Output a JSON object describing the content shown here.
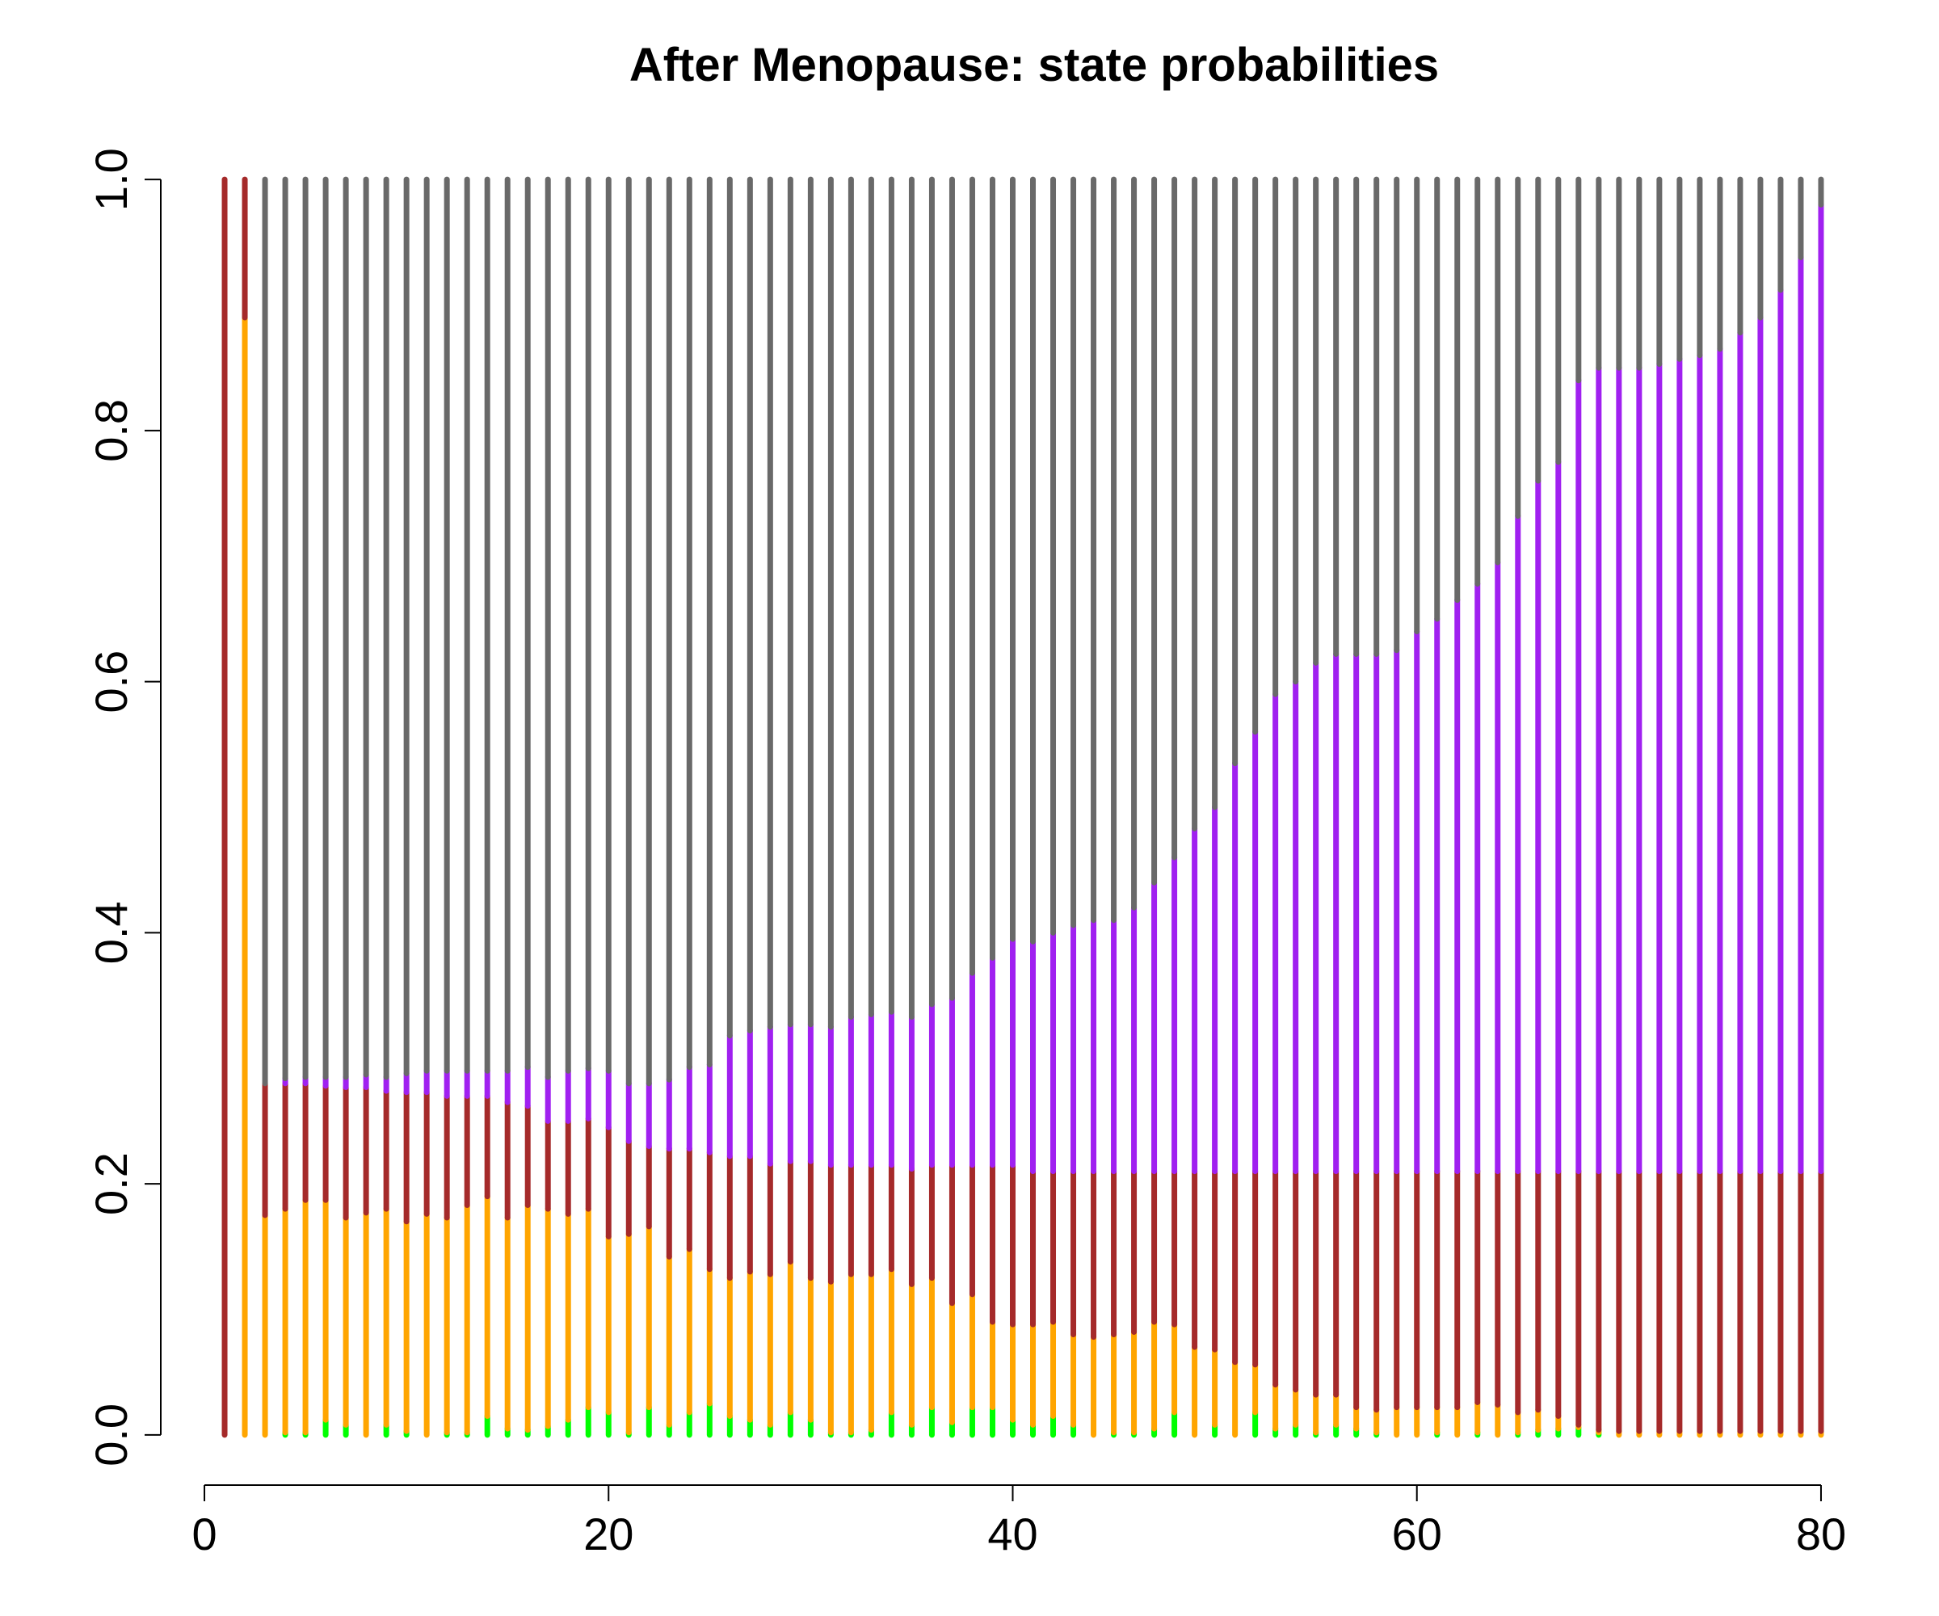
{
  "chart_data": {
    "type": "stacked-lines",
    "title": "After Menopause: state probabilities",
    "x": [
      1,
      2,
      3,
      4,
      5,
      6,
      7,
      8,
      9,
      10,
      11,
      12,
      13,
      14,
      15,
      16,
      17,
      18,
      19,
      20,
      21,
      22,
      23,
      24,
      25,
      26,
      27,
      28,
      29,
      30,
      31,
      32,
      33,
      34,
      35,
      36,
      37,
      38,
      39,
      40,
      41,
      42,
      43,
      44,
      45,
      46,
      47,
      48,
      49,
      50,
      51,
      52,
      53,
      54,
      55,
      56,
      57,
      58,
      59,
      60,
      61,
      62,
      63,
      64,
      65,
      66,
      67,
      68,
      69,
      70,
      71,
      72,
      73,
      74,
      75,
      76,
      77,
      78,
      79,
      80
    ],
    "series": [
      {
        "color": "#00ff00",
        "values": [
          0,
          0,
          0,
          0.002,
          0.002,
          0.012,
          0.008,
          0,
          0.008,
          0.003,
          0,
          0.002,
          0.002,
          0.015,
          0.005,
          0.004,
          0.007,
          0.012,
          0.022,
          0.018,
          0.002,
          0.022,
          0.008,
          0.018,
          0.025,
          0.015,
          0.012,
          0.008,
          0.018,
          0.012,
          0.002,
          0.002,
          0.004,
          0.018,
          0.008,
          0.022,
          0.01,
          0.022,
          0.022,
          0.012,
          0.008,
          0.015,
          0.008,
          0,
          0.002,
          0.002,
          0.005,
          0.018,
          0,
          0.008,
          0,
          0.018,
          0.005,
          0.008,
          0.002,
          0.008,
          0.005,
          0.002,
          0,
          0,
          0.002,
          0,
          0.002,
          0,
          0.002,
          0.004,
          0.005,
          0.006,
          0.002,
          0,
          0,
          0,
          0,
          0,
          0,
          0,
          0,
          0,
          0,
          0
        ]
      },
      {
        "color": "#ffa500",
        "values": [
          0,
          0.89,
          0.175,
          0.178,
          0.185,
          0.175,
          0.165,
          0.177,
          0.172,
          0.167,
          0.176,
          0.171,
          0.181,
          0.175,
          0.168,
          0.179,
          0.173,
          0.164,
          0.158,
          0.14,
          0.158,
          0.144,
          0.134,
          0.13,
          0.107,
          0.11,
          0.118,
          0.12,
          0.12,
          0.113,
          0.12,
          0.126,
          0.124,
          0.114,
          0.112,
          0.103,
          0.095,
          0.09,
          0.068,
          0.076,
          0.08,
          0.075,
          0.072,
          0.078,
          0.078,
          0.08,
          0.085,
          0.07,
          0.07,
          0.06,
          0.058,
          0.038,
          0.035,
          0.028,
          0.03,
          0.024,
          0.017,
          0.018,
          0.022,
          0.022,
          0.02,
          0.022,
          0.024,
          0.024,
          0.016,
          0.016,
          0.01,
          0.002,
          0.002,
          0.003,
          0.003,
          0.003,
          0.003,
          0.003,
          0.003,
          0.003,
          0.003,
          0.003,
          0.003,
          0.003
        ]
      },
      {
        "color": "#a52a2a",
        "values": [
          1,
          0.11,
          0.105,
          0.1,
          0.093,
          0.091,
          0.104,
          0.1,
          0.094,
          0.103,
          0.097,
          0.097,
          0.087,
          0.08,
          0.092,
          0.079,
          0.07,
          0.074,
          0.072,
          0.087,
          0.074,
          0.064,
          0.086,
          0.08,
          0.093,
          0.097,
          0.092,
          0.088,
          0.08,
          0.093,
          0.093,
          0.087,
          0.087,
          0.083,
          0.092,
          0.09,
          0.11,
          0.103,
          0.125,
          0.127,
          0.122,
          0.12,
          0.13,
          0.132,
          0.13,
          0.128,
          0.12,
          0.122,
          0.14,
          0.142,
          0.152,
          0.154,
          0.17,
          0.174,
          0.178,
          0.178,
          0.188,
          0.19,
          0.188,
          0.188,
          0.188,
          0.188,
          0.184,
          0.186,
          0.192,
          0.19,
          0.195,
          0.202,
          0.206,
          0.207,
          0.207,
          0.207,
          0.207,
          0.207,
          0.207,
          0.207,
          0.207,
          0.207,
          0.207,
          0.207
        ]
      },
      {
        "color": "#a020f0",
        "values": [
          0,
          0,
          0,
          0.004,
          0.005,
          0.007,
          0.008,
          0.01,
          0.011,
          0.015,
          0.017,
          0.02,
          0.02,
          0.02,
          0.025,
          0.031,
          0.035,
          0.04,
          0.04,
          0.045,
          0.046,
          0.05,
          0.055,
          0.065,
          0.07,
          0.096,
          0.1,
          0.109,
          0.109,
          0.109,
          0.11,
          0.118,
          0.12,
          0.122,
          0.121,
          0.128,
          0.133,
          0.153,
          0.165,
          0.18,
          0.183,
          0.19,
          0.196,
          0.2,
          0.2,
          0.21,
          0.23,
          0.25,
          0.273,
          0.29,
          0.325,
          0.35,
          0.38,
          0.39,
          0.405,
          0.412,
          0.412,
          0.412,
          0.415,
          0.43,
          0.44,
          0.455,
          0.468,
          0.485,
          0.522,
          0.55,
          0.565,
          0.63,
          0.64,
          0.64,
          0.64,
          0.643,
          0.647,
          0.65,
          0.655,
          0.668,
          0.68,
          0.702,
          0.728,
          0.77
        ]
      },
      {
        "color": "#696969",
        "values": [
          0,
          0,
          0.72,
          0.716,
          0.715,
          0.715,
          0.715,
          0.713,
          0.715,
          0.712,
          0.71,
          0.71,
          0.71,
          0.71,
          0.71,
          0.707,
          0.715,
          0.71,
          0.708,
          0.71,
          0.72,
          0.72,
          0.717,
          0.707,
          0.705,
          0.682,
          0.678,
          0.675,
          0.673,
          0.673,
          0.675,
          0.667,
          0.665,
          0.663,
          0.667,
          0.657,
          0.652,
          0.632,
          0.62,
          0.605,
          0.607,
          0.6,
          0.594,
          0.59,
          0.59,
          0.58,
          0.56,
          0.54,
          0.517,
          0.5,
          0.465,
          0.44,
          0.41,
          0.4,
          0.385,
          0.378,
          0.378,
          0.378,
          0.375,
          0.36,
          0.35,
          0.335,
          0.322,
          0.305,
          0.268,
          0.24,
          0.225,
          0.16,
          0.15,
          0.15,
          0.15,
          0.147,
          0.143,
          0.14,
          0.135,
          0.122,
          0.11,
          0.088,
          0.062,
          0.02
        ]
      }
    ],
    "xlim": [
      -2.16,
      83.16
    ],
    "ylim": [
      -0.04,
      1.04
    ],
    "xticks": [
      0,
      20,
      40,
      60,
      80
    ],
    "yticks": [
      {
        "value": 0,
        "label": "0.0"
      },
      {
        "value": 0.2,
        "label": "0.2"
      },
      {
        "value": 0.4,
        "label": "0.4"
      },
      {
        "value": 0.6,
        "label": "0.6"
      },
      {
        "value": 0.8,
        "label": "0.8"
      },
      {
        "value": 1,
        "label": "1.0"
      }
    ]
  }
}
